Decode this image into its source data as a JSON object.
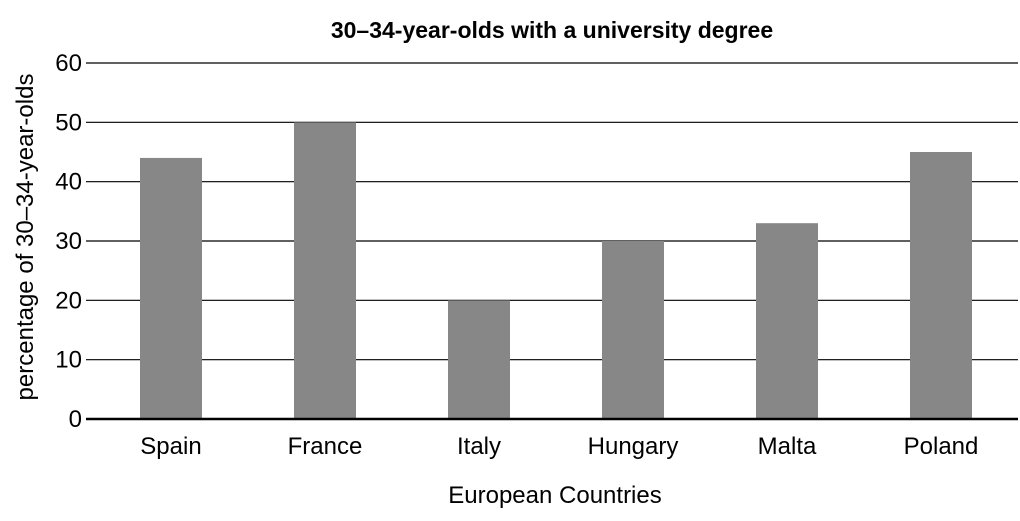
{
  "chart_data": {
    "type": "bar",
    "title": "30–34-year-olds with a university degree",
    "xlabel": "European Countries",
    "ylabel": "percentage of 30–34-year-olds",
    "categories": [
      "Spain",
      "France",
      "Italy",
      "Hungary",
      "Malta",
      "Poland"
    ],
    "values": [
      44,
      50,
      20,
      30,
      33,
      45
    ],
    "ylim": [
      0,
      60
    ],
    "yticks": [
      0,
      10,
      20,
      30,
      40,
      50,
      60
    ],
    "grid": true,
    "bar_color": "#878787"
  }
}
